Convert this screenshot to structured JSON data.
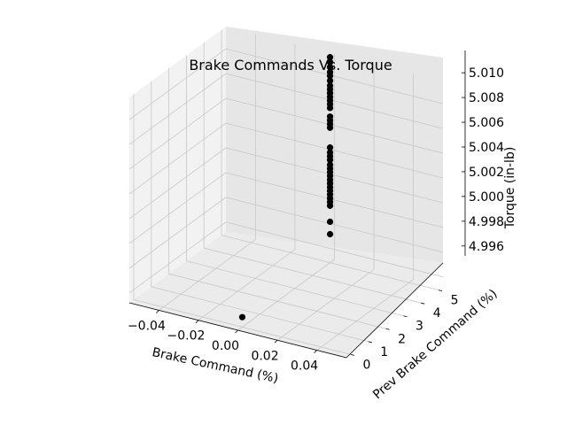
{
  "chart_data": {
    "type": "scatter",
    "projection": "3d",
    "title": "Brake Commands Vs. Torque",
    "xlabel": "Brake Command (%)",
    "ylabel": "Prev Brake Command (%)",
    "zlabel": "Torque (in-lb)",
    "xlim": [
      -0.055,
      0.055
    ],
    "ylim": [
      -0.25,
      5.25
    ],
    "zlim": [
      4.9952,
      5.0118
    ],
    "x_ticks": [
      "−0.04",
      "−0.02",
      "0.00",
      "0.02",
      "0.04"
    ],
    "x_tick_values": [
      -0.04,
      -0.02,
      0.0,
      0.02,
      0.04
    ],
    "y_ticks": [
      "0",
      "1",
      "2",
      "3",
      "4",
      "5"
    ],
    "y_tick_values": [
      0,
      1,
      2,
      3,
      4,
      5
    ],
    "z_ticks": [
      "4.996",
      "4.998",
      "5.000",
      "5.002",
      "5.004",
      "5.006",
      "5.008",
      "5.010"
    ],
    "z_tick_values": [
      4.996,
      4.998,
      5.0,
      5.002,
      5.004,
      5.006,
      5.008,
      5.01
    ],
    "grid": true,
    "marker_color": "#000000",
    "points": [
      {
        "x": 0.0,
        "y": 0,
        "z": 4.996
      },
      {
        "x": 0.0,
        "y": 5,
        "z": 4.9975
      },
      {
        "x": 0.0,
        "y": 5,
        "z": 4.9985
      },
      {
        "x": 0.0,
        "y": 5,
        "z": 4.9998
      },
      {
        "x": 0.0,
        "y": 5,
        "z": 5.0001
      },
      {
        "x": 0.0,
        "y": 5,
        "z": 5.0004
      },
      {
        "x": 0.0,
        "y": 5,
        "z": 5.0007
      },
      {
        "x": 0.0,
        "y": 5,
        "z": 5.001
      },
      {
        "x": 0.0,
        "y": 5,
        "z": 5.0013
      },
      {
        "x": 0.0,
        "y": 5,
        "z": 5.0016
      },
      {
        "x": 0.0,
        "y": 5,
        "z": 5.0019
      },
      {
        "x": 0.0,
        "y": 5,
        "z": 5.0022
      },
      {
        "x": 0.0,
        "y": 5,
        "z": 5.0025
      },
      {
        "x": 0.0,
        "y": 5,
        "z": 5.0028
      },
      {
        "x": 0.0,
        "y": 5,
        "z": 5.0031
      },
      {
        "x": 0.0,
        "y": 5,
        "z": 5.0035
      },
      {
        "x": 0.0,
        "y": 5,
        "z": 5.0038
      },
      {
        "x": 0.0,
        "y": 5,
        "z": 5.0041
      },
      {
        "x": 0.0,
        "y": 5,
        "z": 5.0045
      },
      {
        "x": 0.0,
        "y": 5,
        "z": 5.0061
      },
      {
        "x": 0.0,
        "y": 5,
        "z": 5.0064
      },
      {
        "x": 0.0,
        "y": 5,
        "z": 5.0067
      },
      {
        "x": 0.0,
        "y": 5,
        "z": 5.007
      },
      {
        "x": 0.0,
        "y": 5,
        "z": 5.0077
      },
      {
        "x": 0.0,
        "y": 5,
        "z": 5.008
      },
      {
        "x": 0.0,
        "y": 5,
        "z": 5.0083
      },
      {
        "x": 0.0,
        "y": 5,
        "z": 5.0086
      },
      {
        "x": 0.0,
        "y": 5,
        "z": 5.0089
      },
      {
        "x": 0.0,
        "y": 5,
        "z": 5.0092
      },
      {
        "x": 0.0,
        "y": 5,
        "z": 5.0095
      },
      {
        "x": 0.0,
        "y": 5,
        "z": 5.0099
      },
      {
        "x": 0.0,
        "y": 5,
        "z": 5.0103
      },
      {
        "x": 0.0,
        "y": 5,
        "z": 5.0106
      },
      {
        "x": 0.0,
        "y": 5,
        "z": 5.011
      },
      {
        "x": 0.0,
        "y": 5,
        "z": 5.0114
      },
      {
        "x": 0.0,
        "y": 5,
        "z": 5.0118
      }
    ]
  }
}
